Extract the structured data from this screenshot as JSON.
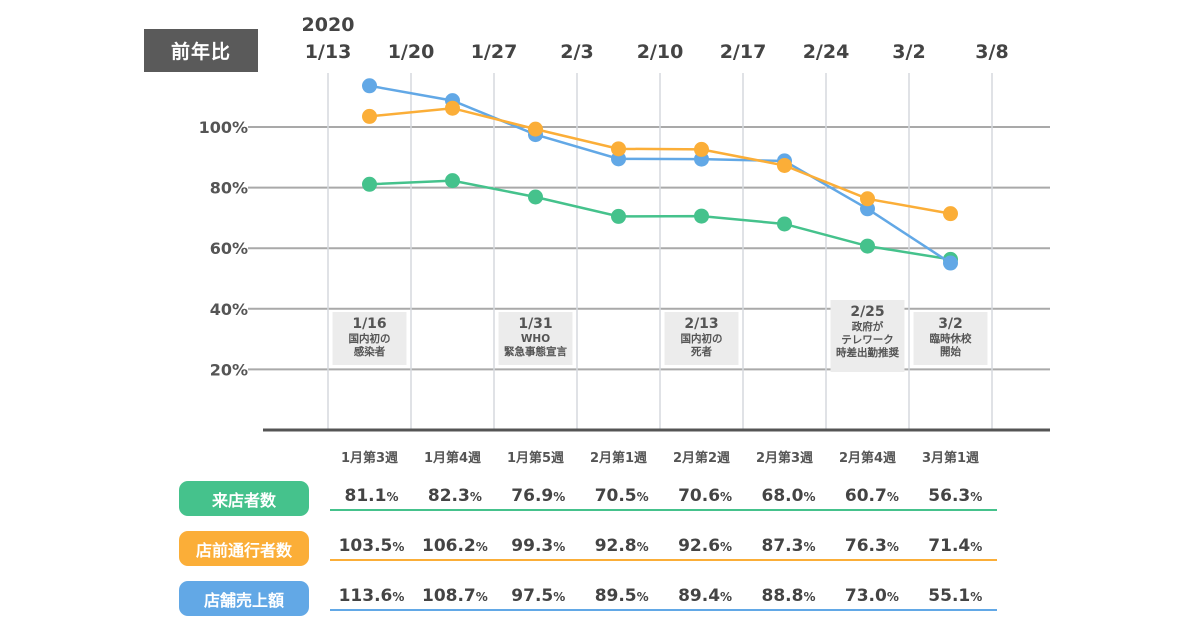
{
  "header": {
    "label": "前年比"
  },
  "colors": {
    "visitors": "#45c28c",
    "passersby": "#fbae38",
    "sales": "#62a8e6",
    "header_bg": "#5a5a5a",
    "annotation_bg": "#ececec"
  },
  "chart_data": {
    "type": "line",
    "title": "前年比",
    "ylabel": "",
    "xlabel": "",
    "ylim": [
      0,
      120
    ],
    "yticks": [
      20,
      40,
      60,
      80,
      100
    ],
    "ytick_labels": [
      "20%",
      "40%",
      "60%",
      "80%",
      "100%"
    ],
    "grid": true,
    "date_ticks": [
      {
        "year": "2020",
        "label": "1/13"
      },
      {
        "label": "1/20"
      },
      {
        "label": "1/27"
      },
      {
        "label": "2/3"
      },
      {
        "label": "2/10"
      },
      {
        "label": "2/17"
      },
      {
        "label": "2/24"
      },
      {
        "label": "3/2"
      },
      {
        "label": "3/8"
      }
    ],
    "categories": [
      "1月第3週",
      "1月第4週",
      "1月第5週",
      "2月第1週",
      "2月第2週",
      "2月第3週",
      "2月第4週",
      "3月第1週"
    ],
    "series": [
      {
        "key": "visitors",
        "name": "来店者数",
        "values": [
          81.1,
          82.3,
          76.9,
          70.5,
          70.6,
          68.0,
          60.7,
          56.3
        ]
      },
      {
        "key": "passersby",
        "name": "店前通行者数",
        "values": [
          103.5,
          106.2,
          99.3,
          92.8,
          92.6,
          87.3,
          76.3,
          71.4
        ]
      },
      {
        "key": "sales",
        "name": "店舗売上額",
        "values": [
          113.6,
          108.7,
          97.5,
          89.5,
          89.4,
          88.8,
          73.0,
          55.1
        ]
      }
    ],
    "annotations": [
      {
        "week_index": 0,
        "lines": [
          "1/16",
          "国内初の",
          "感染者"
        ]
      },
      {
        "week_index": 2,
        "lines": [
          "1/31",
          "WHO",
          "緊急事態宣言"
        ]
      },
      {
        "week_index": 4,
        "lines": [
          "2/13",
          "国内初の",
          "死者"
        ]
      },
      {
        "week_index": 6,
        "lines": [
          "2/25",
          "政府が",
          "テレワーク",
          "時差出勤推奨"
        ]
      },
      {
        "week_index": 7,
        "lines": [
          "3/2",
          "臨時休校",
          "開始"
        ]
      }
    ]
  },
  "table": {
    "rows": [
      {
        "key": "visitors",
        "label": "来店者数",
        "values": [
          "81.1",
          "82.3",
          "76.9",
          "70.5",
          "70.6",
          "68.0",
          "60.7",
          "56.3"
        ]
      },
      {
        "key": "passersby",
        "label": "店前通行者数",
        "values": [
          "103.5",
          "106.2",
          "99.3",
          "92.8",
          "92.6",
          "87.3",
          "76.3",
          "71.4"
        ]
      },
      {
        "key": "sales",
        "label": "店舗売上額",
        "values": [
          "113.6",
          "108.7",
          "97.5",
          "89.5",
          "89.4",
          "88.8",
          "73.0",
          "55.1"
        ]
      }
    ],
    "unit": "%"
  }
}
